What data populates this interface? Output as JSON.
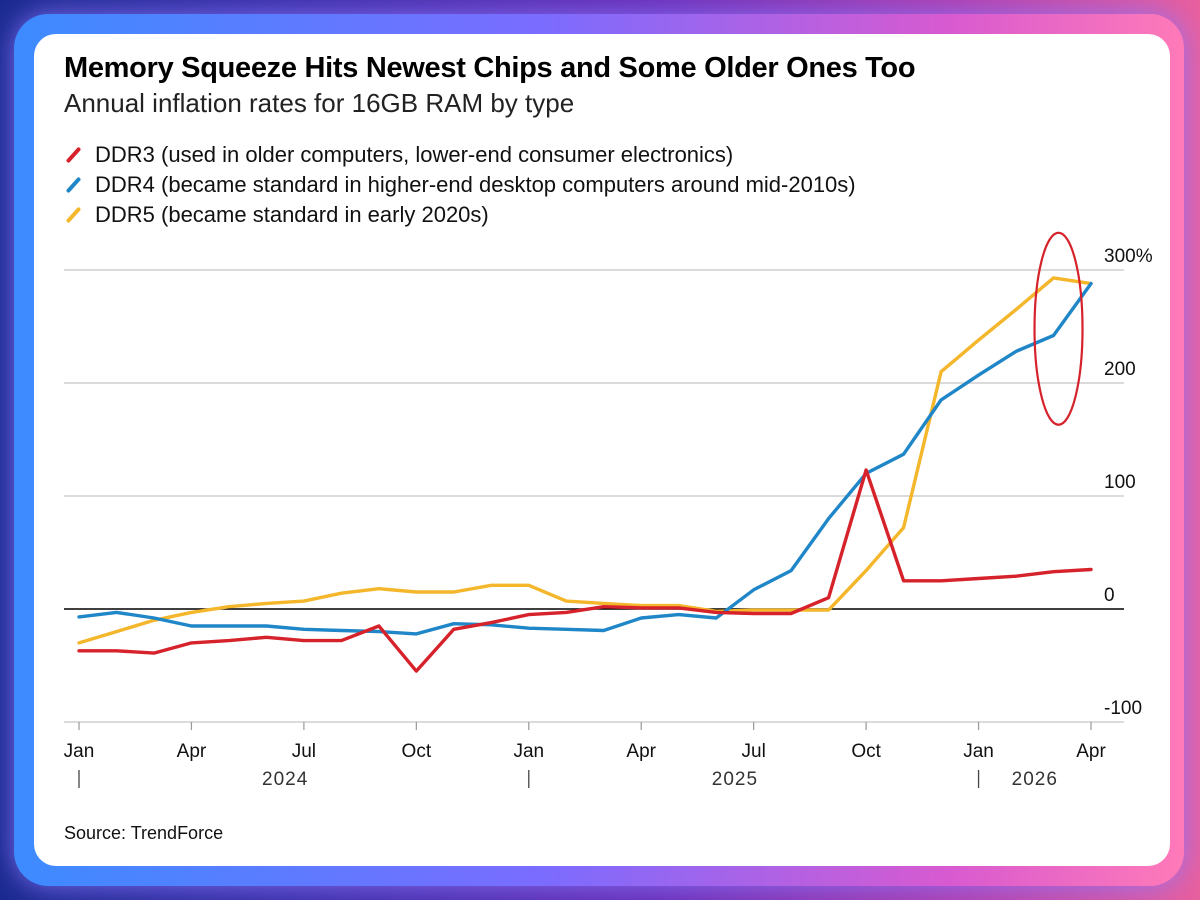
{
  "header": {
    "title": "Memory Squeeze Hits Newest Chips and Some Older Ones Too",
    "subtitle": "Annual inflation rates for 16GB RAM by type"
  },
  "source": "Source: TrendForce",
  "colors": {
    "DDR3": "#d6222a",
    "DDR4": "#1f86c8",
    "DDR5": "#f4b62a",
    "grid": "#cfcfcf",
    "zero_line": "#000000",
    "highlight": "#d6222a",
    "frame_gradient": [
      "#3d8bff",
      "#7a6cff",
      "#d85ad0",
      "#ff7ab8"
    ]
  },
  "chart_data": {
    "type": "line",
    "title": "Memory Squeeze Hits Newest Chips and Some Older Ones Too",
    "subtitle": "Annual inflation rates for 16GB RAM by type",
    "ylabel": "",
    "xlabel": "",
    "ylim": [
      -100,
      300
    ],
    "y_ticks": [
      {
        "value": 300,
        "label": "300%"
      },
      {
        "value": 200,
        "label": "200"
      },
      {
        "value": 100,
        "label": "100"
      },
      {
        "value": 0,
        "label": "0"
      },
      {
        "value": -100,
        "label": "-100"
      }
    ],
    "x": [
      "2024-01",
      "2024-02",
      "2024-03",
      "2024-04",
      "2024-05",
      "2024-06",
      "2024-07",
      "2024-08",
      "2024-09",
      "2024-10",
      "2024-11",
      "2024-12",
      "2025-01",
      "2025-02",
      "2025-03",
      "2025-04",
      "2025-05",
      "2025-06",
      "2025-07",
      "2025-08",
      "2025-09",
      "2025-10",
      "2025-11",
      "2025-12",
      "2026-01",
      "2026-02",
      "2026-03",
      "2026-04"
    ],
    "x_ticks": [
      {
        "month": "2024-01",
        "label": "Jan"
      },
      {
        "month": "2024-04",
        "label": "Apr"
      },
      {
        "month": "2024-07",
        "label": "Jul"
      },
      {
        "month": "2024-10",
        "label": "Oct"
      },
      {
        "month": "2025-01",
        "label": "Jan"
      },
      {
        "month": "2025-04",
        "label": "Apr"
      },
      {
        "month": "2025-07",
        "label": "Jul"
      },
      {
        "month": "2025-10",
        "label": "Oct"
      },
      {
        "month": "2026-01",
        "label": "Jan"
      },
      {
        "month": "2026-04",
        "label": "Apr"
      }
    ],
    "year_labels": [
      {
        "label": "2024",
        "start": "2024-01",
        "end": "2024-12"
      },
      {
        "label": "2025",
        "start": "2025-01",
        "end": "2025-12"
      },
      {
        "label": "2026",
        "start": "2026-01",
        "end": "2026-04"
      }
    ],
    "series": [
      {
        "name": "DDR3",
        "legend": "DDR3 (used in older computers, lower-end consumer electronics)",
        "values": [
          -37,
          -37,
          -39,
          -30,
          -28,
          -25,
          -28,
          -28,
          -15,
          -55,
          -18,
          -12,
          -5,
          -3,
          2,
          1,
          1,
          -3,
          -4,
          -4,
          10,
          123,
          25,
          25,
          27,
          29,
          33,
          35
        ]
      },
      {
        "name": "DDR4",
        "legend": "DDR4 (became standard in higher-end desktop computers around mid-2010s)",
        "values": [
          -7,
          -3,
          -8,
          -15,
          -15,
          -15,
          -18,
          -19,
          -20,
          -22,
          -13,
          -14,
          -17,
          -18,
          -19,
          -8,
          -5,
          -8,
          17,
          34,
          80,
          120,
          137,
          185,
          207,
          228,
          242,
          288
        ]
      },
      {
        "name": "DDR5",
        "legend": "DDR5 (became standard in early 2020s)",
        "values": [
          -30,
          -20,
          -10,
          -3,
          2,
          5,
          7,
          14,
          18,
          15,
          15,
          21,
          21,
          7,
          5,
          3,
          3,
          -2,
          -1,
          -1,
          -1,
          34,
          72,
          210,
          238,
          265,
          293,
          288
        ]
      }
    ],
    "annotation": {
      "type": "ellipse",
      "label": "",
      "around": "2026-03 to 2026-04, 200% to 300%"
    },
    "grid": true,
    "legend_position": "top-left",
    "y_axis_side": "right"
  }
}
